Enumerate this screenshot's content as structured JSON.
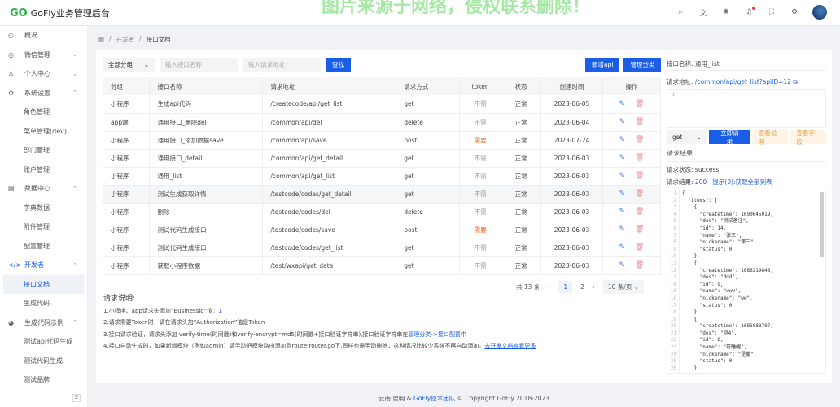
{
  "header": {
    "app_title": "GoFly业务管理后台",
    "watermark": "图片来源于网络，侵权联系删除！",
    "icons": [
      "search-icon",
      "translate-icon",
      "theme-icon",
      "bell-icon",
      "fullscreen-icon",
      "gear-icon"
    ]
  },
  "sidebar": {
    "items": [
      {
        "label": "概况",
        "icon": "dashboard-icon",
        "type": "top"
      },
      {
        "label": "微信管理",
        "icon": "wechat-icon",
        "type": "top",
        "chev": "⌄"
      },
      {
        "label": "个人中心",
        "icon": "user-icon",
        "type": "top",
        "chev": "⌄"
      },
      {
        "label": "系统设置",
        "icon": "settings-icon",
        "type": "top",
        "chev": "⌃"
      },
      {
        "label": "角色管理",
        "type": "sub"
      },
      {
        "label": "菜单管理(dev)",
        "type": "sub"
      },
      {
        "label": "部门管理",
        "type": "sub"
      },
      {
        "label": "账户管理",
        "type": "sub"
      },
      {
        "label": "数据中心",
        "icon": "database-icon",
        "type": "top",
        "chev": "⌃"
      },
      {
        "label": "字典数据",
        "type": "sub"
      },
      {
        "label": "附件管理",
        "type": "sub"
      },
      {
        "label": "配置管理",
        "type": "sub"
      },
      {
        "label": "开发者",
        "icon": "code-icon",
        "type": "activeparent",
        "chev": "⌃"
      },
      {
        "label": "接口文档",
        "type": "active"
      },
      {
        "label": "生成代码",
        "type": "sub"
      },
      {
        "label": "生成代码示例",
        "icon": "example-icon",
        "type": "top",
        "chev": "⌃"
      },
      {
        "label": "测试api代码生成",
        "type": "sub"
      },
      {
        "label": "测试代码生成",
        "type": "sub"
      },
      {
        "label": "测试品牌",
        "type": "sub"
      }
    ]
  },
  "breadcrumb": [
    "开发者",
    "接口文档"
  ],
  "toolbar": {
    "group_select": "全部分组",
    "name_placeholder": "输入接口名称",
    "url_placeholder": "输入请求地址",
    "search_label": "查找",
    "add_label": "新增api",
    "manage_label": "管理分类"
  },
  "table": {
    "headers": [
      "分组",
      "接口名称",
      "请求地址",
      "请求方式",
      "token",
      "状态",
      "创建时间",
      "操作"
    ],
    "rows": [
      [
        "小程序",
        "生成api代码",
        "/createcode/api/get_list",
        "get",
        "不需",
        "正常",
        "2023-06-05"
      ],
      [
        "app端",
        "通用接口_删除del",
        "/common/api/del",
        "delete",
        "不需",
        "正常",
        "2023-06-04"
      ],
      [
        "小程序",
        "通用接口_添加数据save",
        "/common/api/save",
        "post",
        "需要",
        "正常",
        "2023-07-24"
      ],
      [
        "小程序",
        "通用接口_detail",
        "/common/api/get_detail",
        "get",
        "不需",
        "正常",
        "2023-06-03"
      ],
      [
        "小程序",
        "通用_list",
        "/common/api/get_list",
        "get",
        "不需",
        "正常",
        "2023-06-03"
      ],
      [
        "小程序",
        "测试生成获取详情",
        "/testcode/codes/get_detail",
        "get",
        "不需",
        "正常",
        "2023-06-03"
      ],
      [
        "小程序",
        "删除",
        "/testcode/codes/del",
        "delete",
        "不需",
        "正常",
        "2023-06-03"
      ],
      [
        "小程序",
        "测试代码生成接口",
        "/testcode/codes/save",
        "post",
        "需要",
        "正常",
        "2023-06-03"
      ],
      [
        "小程序",
        "测试代码生成接口",
        "/testcode/codes/get_list",
        "get",
        "不需",
        "正常",
        "2023-06-03"
      ],
      [
        "小程序",
        "获取小程序数据",
        "/test/wxapi/get_data",
        "get",
        "不需",
        "正常",
        "2023-06-03"
      ]
    ],
    "highlight_row": 5
  },
  "pagination": {
    "total": "共 13 条",
    "pages": [
      "1",
      "2"
    ],
    "current": "1",
    "page_size": "10 条/页"
  },
  "notes": {
    "title": "请求说明:",
    "l1": "1.小程序、app请求头添加“Businessid”值：",
    "l1v": "1",
    "l2": "2.请求需要Token时，请在请求头加“Authorization”值是Token",
    "l3": "3.接口请求验证，请求头添加 verify-time(时间戳)和verify-encrypt=md5(时间戳+接口验证字符串),接口验证字符串在",
    "l3link": "管理分类->接口配置",
    "l3end": "中",
    "l4": "4.接口自动生成时，如果新增模块（例如admin）请手动把模块路由添加到route\\router.go下,同样也需手动删除，这种情况比较少系统不再自动添加。",
    "l4link": "去开发文档查看更多"
  },
  "panel": {
    "name_label": "接口名称:",
    "name_value": "通用_list",
    "url_label": "请求地址:",
    "url_value": "/common/api/get_list?apiID=12",
    "method": "get",
    "send_label": "立即请求",
    "doc_label": "查看说明",
    "fields_label": "查看字段",
    "result_title": "请求结果",
    "status_label": "请求状态:",
    "status_value": "success",
    "result_label": "请求结果:",
    "result_code": "200",
    "result_hint": "提示(0):获取全部列表",
    "code": "{\n  \"items\": [\n    {\n      \"createtime\": 1690645019,\n      \"des\": \"测试备注\",\n      \"id\": 14,\n      \"name\": \"张三\",\n      \"nickename\": \"第三\",\n      \"status\": 0\n    },\n    {\n      \"createtime\": 1686219848,\n      \"des\": \"ddd\",\n      \"id\": 9,\n      \"name\": \"www\",\n      \"nickename\": \"ww\",\n      \"status\": 0\n    },\n    {\n      \"createtime\": 1685888707,\n      \"des\": \"测4\",\n      \"id\": 8,\n      \"name\": \"符睡醒\",\n      \"nickename\": \"是撒\",\n      \"status\": 0\n    },"
  },
  "footer": {
    "prefix": "云南·昆明 & ",
    "team": "GoFly技术团队",
    "suffix": " © Copyright GoFly 2018-2023"
  },
  "colors": {
    "primary": "#1a5ee8",
    "warning": "#e6a23c",
    "danger": "#f0642b",
    "logo": "#27b24a"
  }
}
